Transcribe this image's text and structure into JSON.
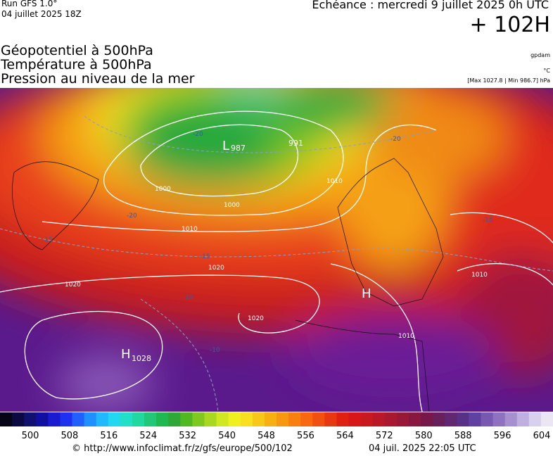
{
  "header": {
    "run": "Run GFS 1.0°",
    "run_date": "04 juillet 2025 18Z",
    "valid": "Echéance : mercredi 9 juillet 2025 0h UTC",
    "lead": "+ 102H"
  },
  "fields": [
    "Géopotentiel à 500hPa",
    "Température à 500hPa",
    "Pression au niveau de la mer"
  ],
  "units": {
    "geopotential": "gpdam",
    "temperature": "°C",
    "pressure": "[Max 1027.8 | Min 986.7] hPa"
  },
  "map_labels": {
    "low": "L",
    "low_value": "987",
    "high_value_north": "991",
    "high": "H",
    "high_value": "1028",
    "high_central": "H"
  },
  "isobars": [
    "1000",
    "1000",
    "1010",
    "1010",
    "1020",
    "1020",
    "1020",
    "1010",
    "1010"
  ],
  "isotherms": [
    "-20",
    "-20",
    "-20",
    "-15",
    "-15",
    "-10",
    "-10",
    "-15"
  ],
  "colorbar": {
    "ticks": [
      500,
      508,
      516,
      524,
      532,
      540,
      548,
      556,
      564,
      572,
      580,
      588,
      596,
      604
    ]
  },
  "footer": {
    "source": "© http://www.infoclimat.fr/z/gfs/europe/500/102",
    "generated": "04 juil. 2025 22:05 UTC"
  }
}
